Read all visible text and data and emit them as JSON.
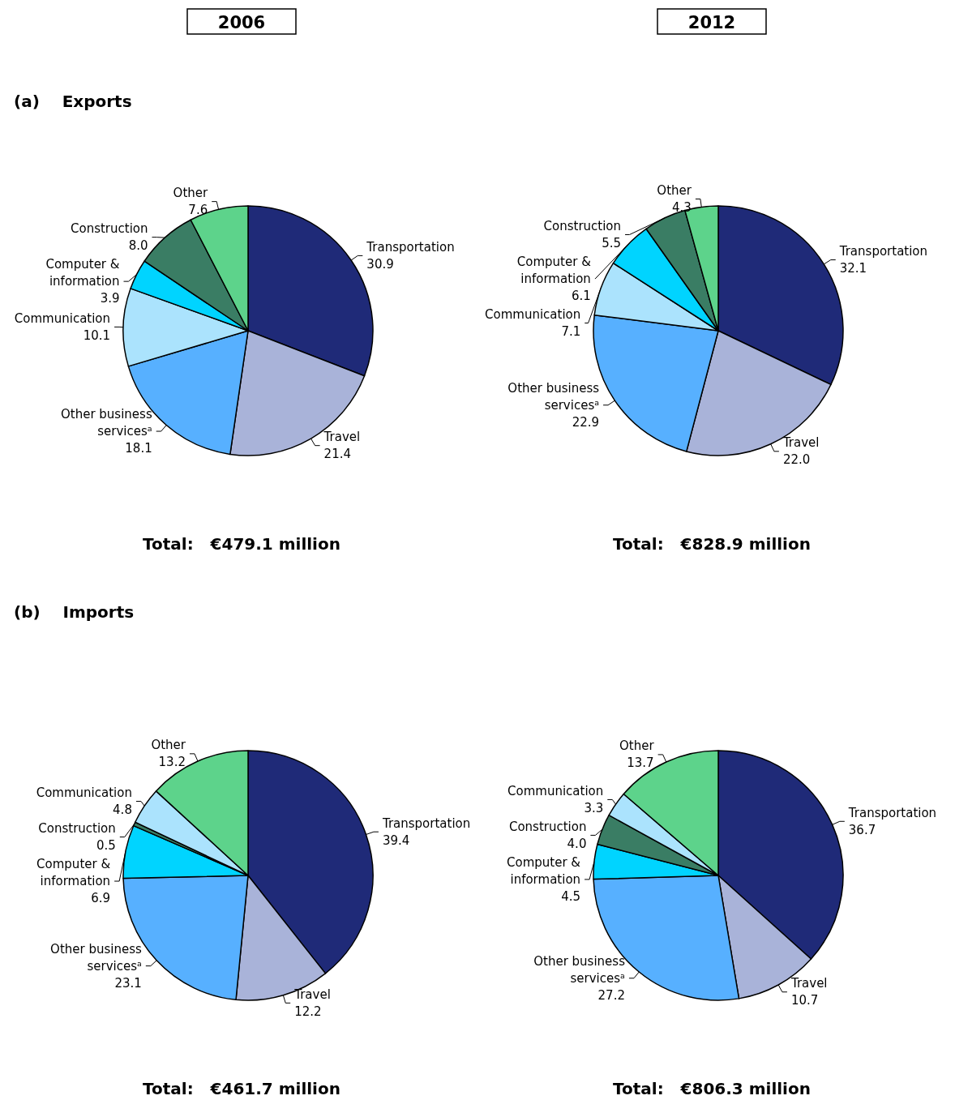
{
  "chart_data": [
    {
      "type": "pie",
      "title": "2006",
      "subtitle": "(a)    Exports",
      "annotations": [
        "Total:   €479.1 million"
      ],
      "categories": [
        "Transportation",
        "Travel",
        "Other business servicesᵃ",
        "Communication",
        "Computer & information",
        "Construction",
        "Other"
      ],
      "values": [
        30.9,
        21.4,
        18.1,
        10.1,
        3.9,
        8.0,
        7.6
      ],
      "value_labels": [
        "30.9",
        "21.4",
        "18.1",
        "10.1",
        "3.9",
        "8.0",
        "7.6"
      ],
      "colors": [
        "#1f2a78",
        "#a9b3d9",
        "#57b0ff",
        "#abe3fd",
        "#00d4ff",
        "#3a7d64",
        "#5dd38b"
      ]
    },
    {
      "type": "pie",
      "title": "2012",
      "annotations": [
        "Total:   €828.9 million"
      ],
      "categories": [
        "Transportation",
        "Travel",
        "Other business servicesᵃ",
        "Communication",
        "Computer & information",
        "Construction",
        "Other"
      ],
      "values": [
        32.1,
        22.0,
        22.9,
        7.1,
        6.1,
        5.5,
        4.3
      ],
      "value_labels": [
        "32.1",
        "22.0",
        "22.9",
        "7.1",
        "6.1",
        "5.5",
        "4.3"
      ],
      "colors": [
        "#1f2a78",
        "#a9b3d9",
        "#57b0ff",
        "#abe3fd",
        "#00d4ff",
        "#3a7d64",
        "#5dd38b"
      ]
    },
    {
      "type": "pie",
      "subtitle": "(b)    Imports",
      "annotations": [
        "Total:   €461.7 million"
      ],
      "categories": [
        "Transportation",
        "Travel",
        "Other business servicesᵃ",
        "Computer & information",
        "Construction",
        "Communication",
        "Other"
      ],
      "values": [
        39.4,
        12.2,
        23.1,
        6.9,
        0.5,
        4.8,
        13.2
      ],
      "value_labels": [
        "39.4",
        "12.2",
        "23.1",
        "6.9",
        "0.5",
        "4.8",
        "13.2"
      ],
      "colors": [
        "#1f2a78",
        "#a9b3d9",
        "#57b0ff",
        "#00d4ff",
        "#3a7d64",
        "#abe3fd",
        "#5dd38b"
      ]
    },
    {
      "type": "pie",
      "annotations": [
        "Total:   €806.3 million"
      ],
      "categories": [
        "Transportation",
        "Travel",
        "Other business servicesᵃ",
        "Computer & information",
        "Construction",
        "Communication",
        "Other"
      ],
      "values": [
        36.7,
        10.7,
        27.2,
        4.5,
        4.0,
        3.3,
        13.7
      ],
      "value_labels": [
        "36.7",
        "10.7",
        "27.2",
        "4.5",
        "4.0",
        "3.3",
        "13.7"
      ],
      "colors": [
        "#1f2a78",
        "#a9b3d9",
        "#57b0ff",
        "#00d4ff",
        "#3a7d64",
        "#abe3fd",
        "#5dd38b"
      ]
    }
  ]
}
